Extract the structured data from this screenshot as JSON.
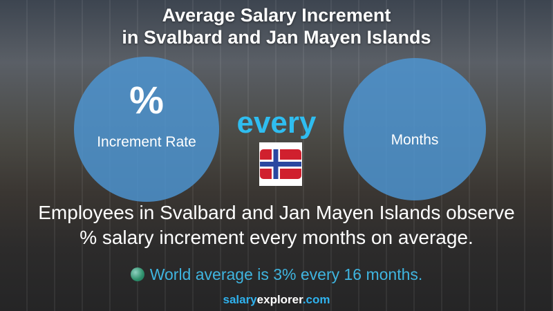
{
  "title": {
    "line1": "Average Salary Increment",
    "line2": "in Svalbard and Jan Mayen Islands"
  },
  "left_circle": {
    "symbol": "%",
    "label": "Increment Rate"
  },
  "connector": "every",
  "right_circle": {
    "label": "Months"
  },
  "flag": {
    "country": "Svalbard and Jan Mayen Islands",
    "icon": "norway-flag-icon"
  },
  "description": {
    "line1": "Employees in Svalbard and Jan Mayen Islands observe",
    "line2": "% salary increment every  months on average."
  },
  "world_average": {
    "icon": "globe-icon",
    "text": "World average is 3% every 16 months."
  },
  "brand": {
    "part1": "salary",
    "part2": "explorer",
    "part3": ".com"
  },
  "colors": {
    "accent": "#2fbdf0",
    "circle": "#4d96d4"
  }
}
